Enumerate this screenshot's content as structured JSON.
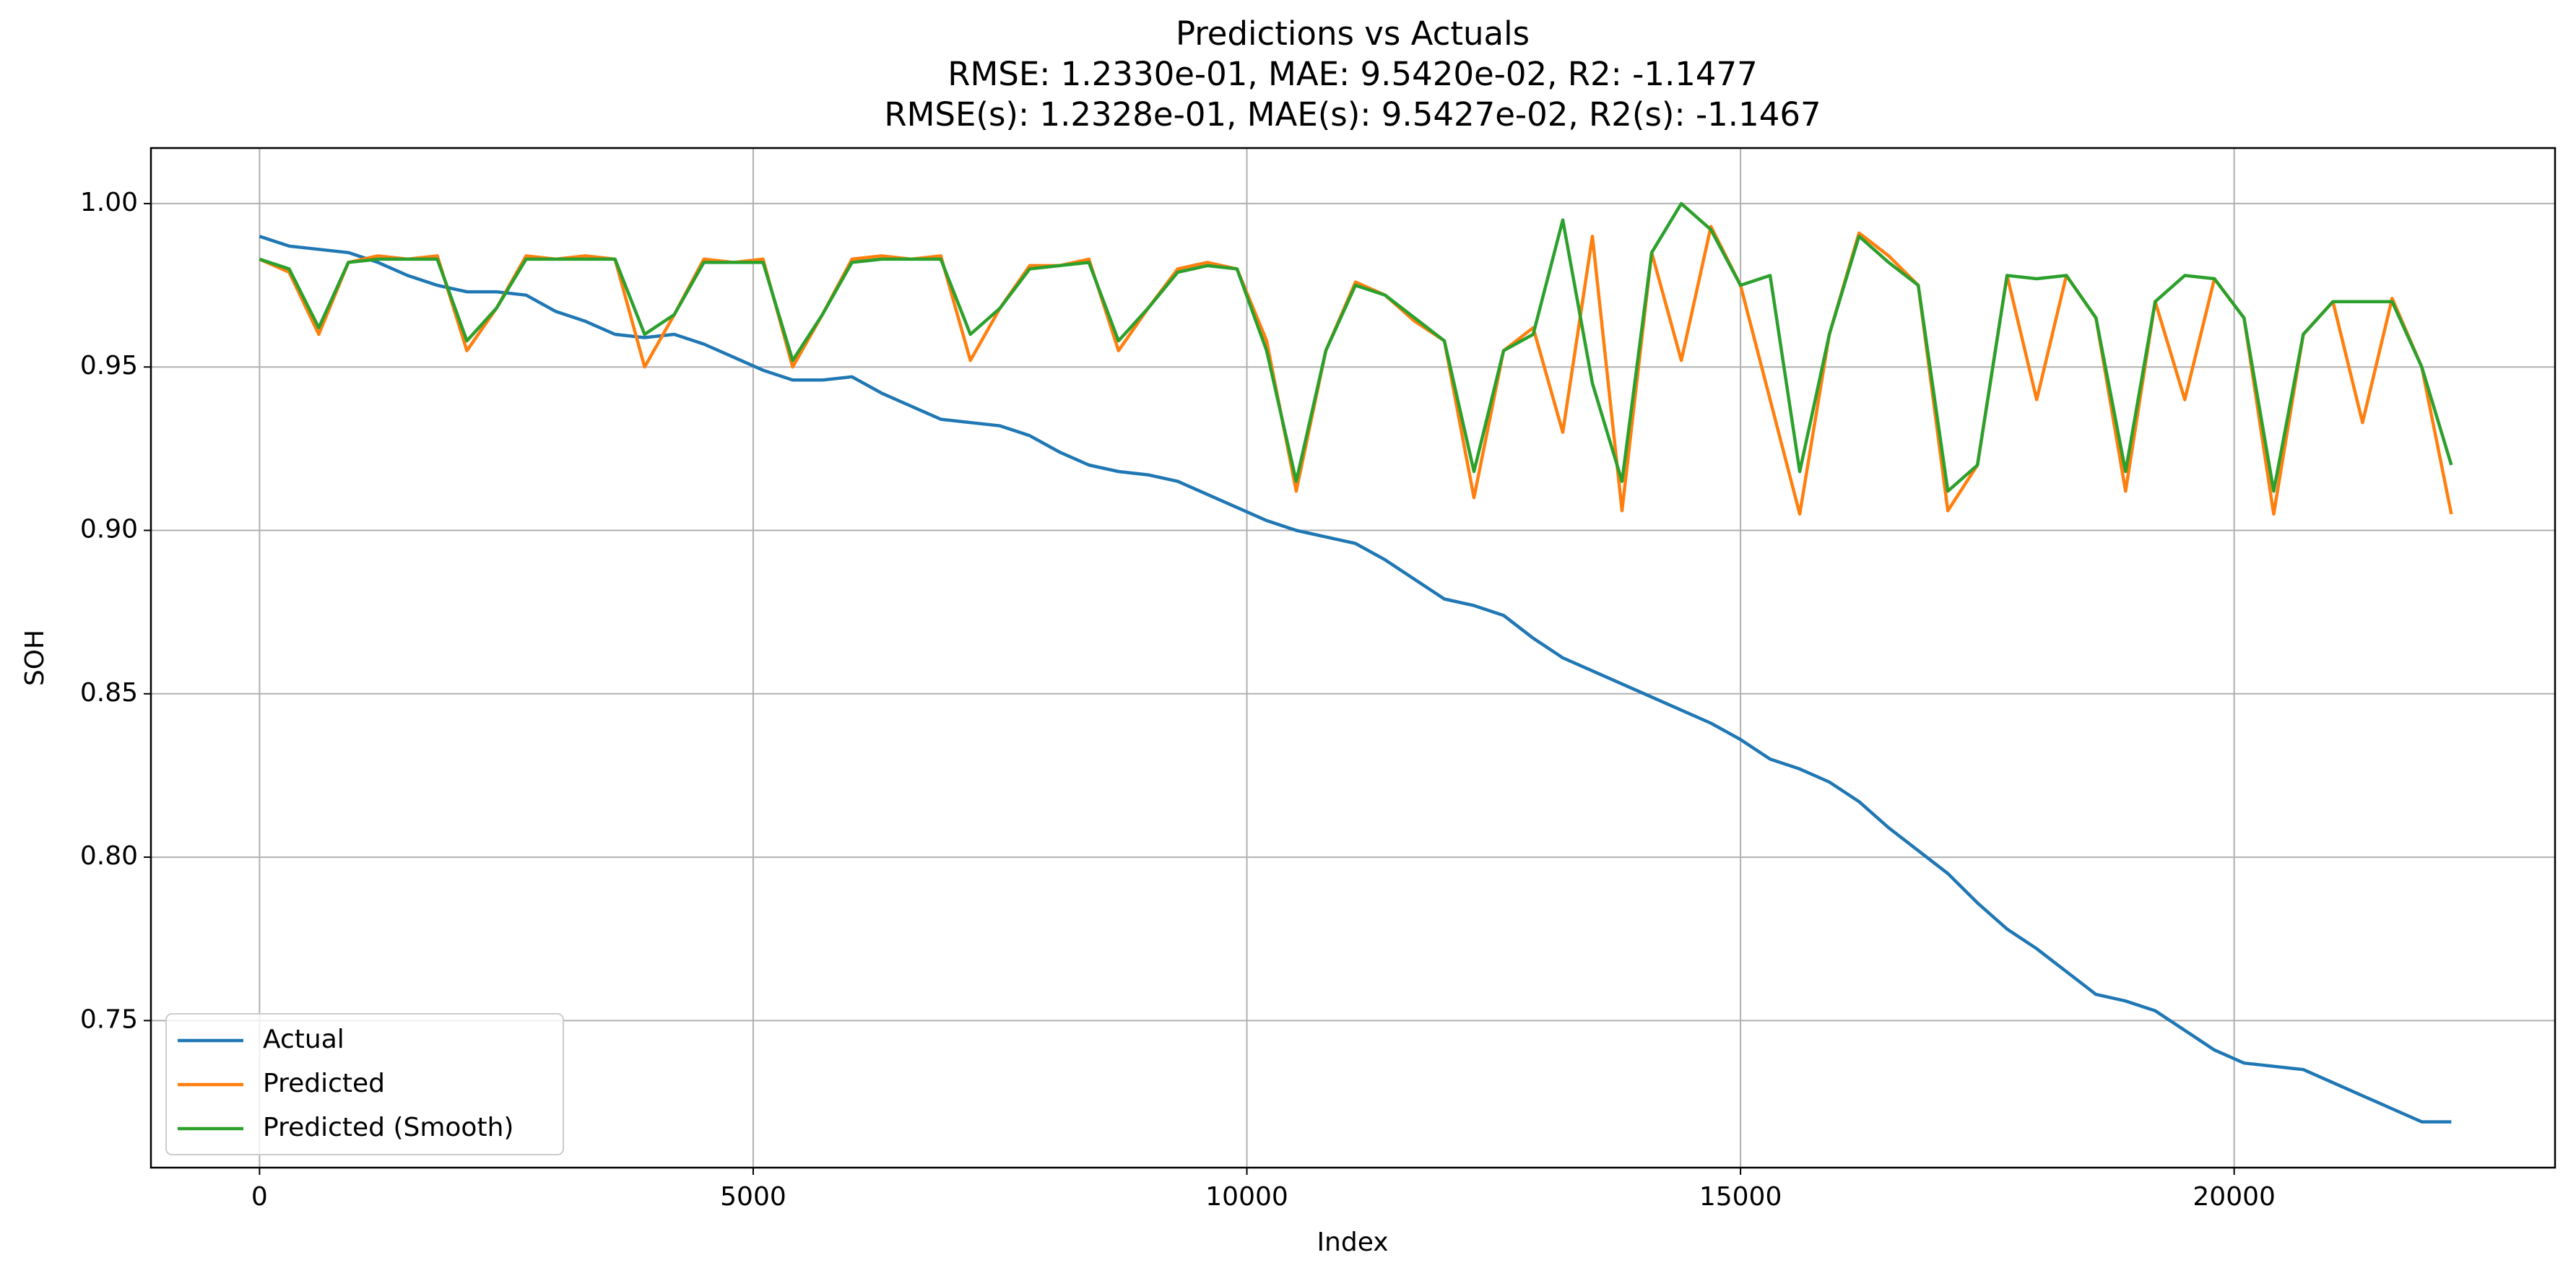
{
  "chart_data": {
    "type": "line",
    "title": "Predictions vs Actuals",
    "subtitle": [
      "RMSE: 1.2330e-01, MAE: 9.5420e-02, R2: -1.1477",
      "RMSE(s): 1.2328e-01, MAE(s): 9.5427e-02, R2(s): -1.1467"
    ],
    "x_label": "Index",
    "y_label": "SOH",
    "x": [
      0,
      300,
      600,
      900,
      1200,
      1500,
      1800,
      2100,
      2400,
      2700,
      3000,
      3300,
      3600,
      3900,
      4200,
      4500,
      4800,
      5100,
      5400,
      5700,
      6000,
      6300,
      6600,
      6900,
      7200,
      7500,
      7800,
      8100,
      8400,
      8700,
      9000,
      9300,
      9600,
      9900,
      10200,
      10500,
      10800,
      11100,
      11400,
      11700,
      12000,
      12300,
      12600,
      12900,
      13200,
      13500,
      13800,
      14100,
      14400,
      14700,
      15000,
      15300,
      15600,
      15900,
      16200,
      16500,
      16800,
      17100,
      17400,
      17700,
      18000,
      18300,
      18600,
      18900,
      19200,
      19500,
      19800,
      20100,
      20400,
      20700,
      21000,
      21300,
      21600,
      21900,
      22200
    ],
    "series": [
      {
        "name": "Actual",
        "color": "#1f77b4",
        "values": [
          0.99,
          0.987,
          0.986,
          0.985,
          0.982,
          0.978,
          0.975,
          0.973,
          0.973,
          0.972,
          0.967,
          0.964,
          0.96,
          0.959,
          0.96,
          0.957,
          0.953,
          0.949,
          0.946,
          0.946,
          0.947,
          0.942,
          0.938,
          0.934,
          0.933,
          0.932,
          0.929,
          0.924,
          0.92,
          0.918,
          0.917,
          0.915,
          0.911,
          0.907,
          0.903,
          0.9,
          0.898,
          0.896,
          0.891,
          0.885,
          0.879,
          0.877,
          0.874,
          0.867,
          0.861,
          0.857,
          0.853,
          0.849,
          0.845,
          0.841,
          0.836,
          0.83,
          0.827,
          0.823,
          0.817,
          0.809,
          0.802,
          0.795,
          0.786,
          0.778,
          0.772,
          0.765,
          0.758,
          0.756,
          0.753,
          0.747,
          0.741,
          0.737,
          0.736,
          0.735,
          0.731,
          0.727,
          0.723,
          0.719,
          0.719
        ]
      },
      {
        "name": "Predicted",
        "color": "#ff7f0e",
        "values": [
          0.983,
          0.979,
          0.96,
          0.982,
          0.984,
          0.983,
          0.984,
          0.955,
          0.968,
          0.984,
          0.983,
          0.984,
          0.983,
          0.95,
          0.966,
          0.983,
          0.982,
          0.983,
          0.95,
          0.966,
          0.983,
          0.984,
          0.983,
          0.984,
          0.952,
          0.968,
          0.981,
          0.981,
          0.983,
          0.955,
          0.968,
          0.98,
          0.982,
          0.98,
          0.958,
          0.912,
          0.955,
          0.976,
          0.972,
          0.964,
          0.958,
          0.91,
          0.955,
          0.962,
          0.93,
          0.99,
          0.906,
          0.985,
          0.952,
          0.993,
          0.975,
          0.94,
          0.905,
          0.96,
          0.991,
          0.984,
          0.975,
          0.906,
          0.92,
          0.978,
          0.94,
          0.978,
          0.965,
          0.912,
          0.97,
          0.94,
          0.977,
          0.965,
          0.905,
          0.96,
          0.97,
          0.933,
          0.971,
          0.95,
          0.905
        ]
      },
      {
        "name": "Predicted (Smooth)",
        "color": "#2ca02c",
        "values": [
          0.983,
          0.98,
          0.962,
          0.982,
          0.983,
          0.983,
          0.983,
          0.958,
          0.968,
          0.983,
          0.983,
          0.983,
          0.983,
          0.96,
          0.966,
          0.982,
          0.982,
          0.982,
          0.952,
          0.966,
          0.982,
          0.983,
          0.983,
          0.983,
          0.96,
          0.968,
          0.98,
          0.981,
          0.982,
          0.958,
          0.968,
          0.979,
          0.981,
          0.98,
          0.955,
          0.915,
          0.955,
          0.975,
          0.972,
          0.965,
          0.958,
          0.918,
          0.955,
          0.96,
          0.995,
          0.945,
          0.915,
          0.985,
          1.0,
          0.992,
          0.975,
          0.978,
          0.918,
          0.96,
          0.99,
          0.982,
          0.975,
          0.912,
          0.92,
          0.978,
          0.977,
          0.978,
          0.965,
          0.918,
          0.97,
          0.978,
          0.977,
          0.965,
          0.912,
          0.96,
          0.97,
          0.97,
          0.97,
          0.95,
          0.92
        ]
      }
    ],
    "xlim": [
      -1100,
      23250
    ],
    "ylim": [
      0.705,
      1.017
    ],
    "xticks": [
      0,
      5000,
      10000,
      15000,
      20000
    ],
    "yticks": [
      0.75,
      {
        "value": 0.8,
        "label": "0.80"
      },
      0.85,
      {
        "value": 0.9,
        "label": "0.90"
      },
      0.95,
      {
        "value": 1.0,
        "label": "1.00"
      }
    ],
    "grid": true,
    "legend": "lower left"
  }
}
